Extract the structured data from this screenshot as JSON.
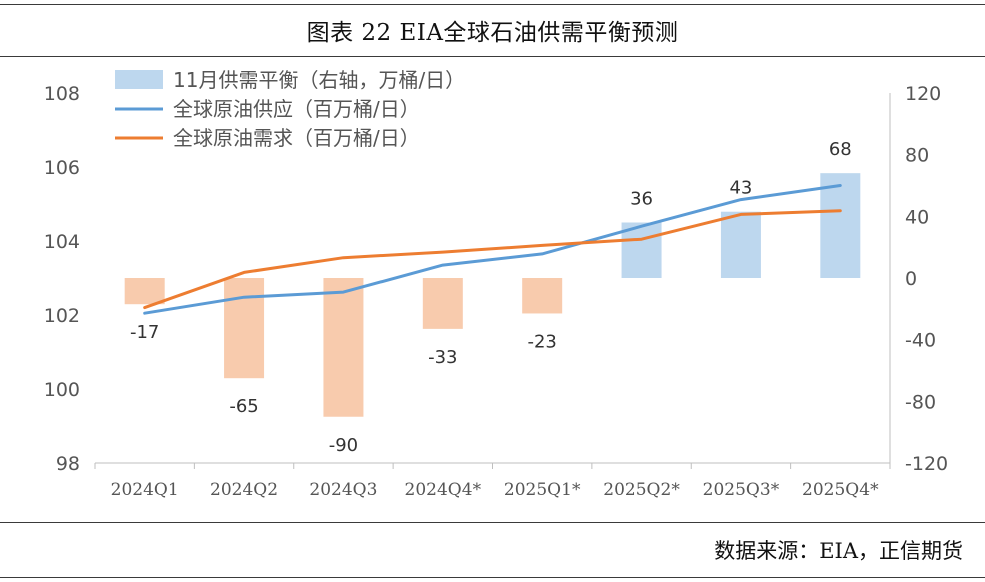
{
  "figure": {
    "title": "图表 22   EIA全球石油供需平衡预测",
    "source": "数据来源：EIA，正信期货"
  },
  "chart_data": {
    "type": "bar+line",
    "categories": [
      "2024Q1",
      "2024Q2",
      "2024Q3",
      "2024Q4*",
      "2025Q1*",
      "2025Q2*",
      "2025Q3*",
      "2025Q4*"
    ],
    "left_axis": {
      "ylim": [
        98,
        108
      ],
      "ticks": [
        "98",
        "100",
        "102",
        "104",
        "106",
        "108"
      ]
    },
    "right_axis": {
      "ylim": [
        -120,
        120
      ],
      "ticks": [
        "-120",
        "-80",
        "-40",
        "0",
        "40",
        "80",
        "120"
      ]
    },
    "bars": {
      "name": "11月供需平衡（右轴，万桶/日）",
      "axis": "right",
      "values": [
        -17,
        -65,
        -90,
        -33,
        -23,
        36,
        43,
        68
      ],
      "labels": [
        "-17",
        "-65",
        "-90",
        "-33",
        "-23",
        "36",
        "43",
        "68"
      ],
      "color_positive": "#BDD7EE",
      "color_negative": "#F8CBAD"
    },
    "lines": [
      {
        "name": "全球原油供应（百万桶/日）",
        "axis": "left",
        "color": "#5B9BD5",
        "values": [
          102.05,
          102.48,
          102.62,
          103.35,
          103.65,
          104.4,
          105.12,
          105.5
        ]
      },
      {
        "name": "全球原油需求（百万桶/日）",
        "axis": "left",
        "color": "#ED7D31",
        "values": [
          102.2,
          103.15,
          103.55,
          103.7,
          103.88,
          104.05,
          104.72,
          104.82
        ]
      }
    ],
    "grid": false,
    "legend_position": "top-left"
  }
}
